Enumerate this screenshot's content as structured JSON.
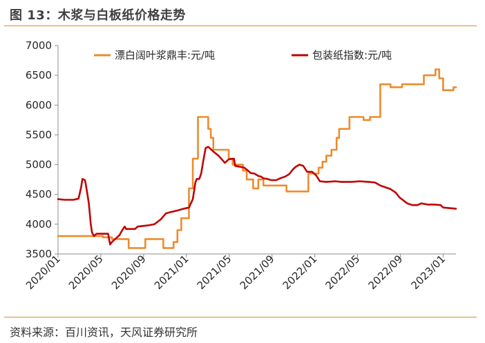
{
  "figure": {
    "title": "图 13：木浆与白板纸价格走势",
    "source": "资料来源：百川资讯，天风证券研究所"
  },
  "colors": {
    "pulp": "#ed8b2c",
    "board": "#c00000",
    "rule": "#d98b2b",
    "axis": "#8c8c8c"
  },
  "chart_data": {
    "type": "line",
    "title": "木浆与白板纸价格走势",
    "xlabel": "",
    "ylabel": "",
    "ylim": [
      3500,
      7000
    ],
    "yticks": [
      3500,
      4000,
      4500,
      5000,
      5500,
      6000,
      6500,
      7000
    ],
    "xlim": [
      2020.0,
      2023.1
    ],
    "xticks": [
      {
        "pos": 2020.0,
        "label": "2020/01"
      },
      {
        "pos": 2020.333,
        "label": "2020/05"
      },
      {
        "pos": 2020.667,
        "label": "2020/09"
      },
      {
        "pos": 2021.0,
        "label": "2021/01"
      },
      {
        "pos": 2021.333,
        "label": "2021/05"
      },
      {
        "pos": 2021.667,
        "label": "2021/09"
      },
      {
        "pos": 2022.0,
        "label": "2022/01"
      },
      {
        "pos": 2022.333,
        "label": "2022/05"
      },
      {
        "pos": 2022.667,
        "label": "2022/09"
      },
      {
        "pos": 2023.0,
        "label": "2023/01"
      }
    ],
    "legend": "top",
    "series": [
      {
        "name": "漂白阔叶浆鼎丰:元/吨",
        "color": "#ed8b2c",
        "step": true,
        "points": [
          [
            2020.0,
            3800
          ],
          [
            2020.35,
            3800
          ],
          [
            2020.35,
            3780
          ],
          [
            2020.42,
            3780
          ],
          [
            2020.42,
            3750
          ],
          [
            2020.55,
            3750
          ],
          [
            2020.55,
            3600
          ],
          [
            2020.68,
            3600
          ],
          [
            2020.68,
            3750
          ],
          [
            2020.82,
            3750
          ],
          [
            2020.82,
            3600
          ],
          [
            2020.9,
            3600
          ],
          [
            2020.9,
            3700
          ],
          [
            2020.93,
            3700
          ],
          [
            2020.93,
            3900
          ],
          [
            2020.96,
            3900
          ],
          [
            2020.96,
            4100
          ],
          [
            2021.02,
            4100
          ],
          [
            2021.02,
            4600
          ],
          [
            2021.05,
            4600
          ],
          [
            2021.05,
            5100
          ],
          [
            2021.09,
            5100
          ],
          [
            2021.09,
            5800
          ],
          [
            2021.17,
            5800
          ],
          [
            2021.17,
            5600
          ],
          [
            2021.19,
            5600
          ],
          [
            2021.19,
            5450
          ],
          [
            2021.21,
            5450
          ],
          [
            2021.21,
            5250
          ],
          [
            2021.33,
            5250
          ],
          [
            2021.33,
            5100
          ],
          [
            2021.36,
            5100
          ],
          [
            2021.36,
            5000
          ],
          [
            2021.44,
            5000
          ],
          [
            2021.44,
            4900
          ],
          [
            2021.47,
            4900
          ],
          [
            2021.47,
            4750
          ],
          [
            2021.52,
            4750
          ],
          [
            2021.52,
            4600
          ],
          [
            2021.56,
            4600
          ],
          [
            2021.56,
            4750
          ],
          [
            2021.6,
            4750
          ],
          [
            2021.6,
            4650
          ],
          [
            2021.78,
            4650
          ],
          [
            2021.78,
            4550
          ],
          [
            2021.95,
            4550
          ],
          [
            2021.95,
            4850
          ],
          [
            2022.03,
            4850
          ],
          [
            2022.03,
            4950
          ],
          [
            2022.06,
            4950
          ],
          [
            2022.06,
            5050
          ],
          [
            2022.09,
            5050
          ],
          [
            2022.09,
            5150
          ],
          [
            2022.13,
            5150
          ],
          [
            2022.13,
            5250
          ],
          [
            2022.17,
            5250
          ],
          [
            2022.17,
            5450
          ],
          [
            2022.19,
            5450
          ],
          [
            2022.19,
            5600
          ],
          [
            2022.27,
            5600
          ],
          [
            2022.27,
            5800
          ],
          [
            2022.38,
            5800
          ],
          [
            2022.38,
            5750
          ],
          [
            2022.43,
            5750
          ],
          [
            2022.43,
            5800
          ],
          [
            2022.51,
            5800
          ],
          [
            2022.51,
            6350
          ],
          [
            2022.59,
            6350
          ],
          [
            2022.59,
            6300
          ],
          [
            2022.68,
            6300
          ],
          [
            2022.68,
            6350
          ],
          [
            2022.85,
            6350
          ],
          [
            2022.85,
            6500
          ],
          [
            2022.94,
            6500
          ],
          [
            2022.94,
            6600
          ],
          [
            2022.97,
            6600
          ],
          [
            2022.97,
            6450
          ],
          [
            2023.0,
            6450
          ],
          [
            2023.0,
            6250
          ],
          [
            2023.08,
            6250
          ],
          [
            2023.08,
            6300
          ],
          [
            2023.1,
            6300
          ]
        ]
      },
      {
        "name": "包装纸指数:元/吨",
        "color": "#c00000",
        "step": false,
        "points": [
          [
            2020.0,
            4420
          ],
          [
            2020.05,
            4410
          ],
          [
            2020.12,
            4410
          ],
          [
            2020.16,
            4430
          ],
          [
            2020.18,
            4620
          ],
          [
            2020.19,
            4760
          ],
          [
            2020.21,
            4740
          ],
          [
            2020.22,
            4620
          ],
          [
            2020.24,
            4350
          ],
          [
            2020.255,
            4000
          ],
          [
            2020.265,
            3860
          ],
          [
            2020.28,
            3800
          ],
          [
            2020.3,
            3840
          ],
          [
            2020.34,
            3840
          ],
          [
            2020.39,
            3840
          ],
          [
            2020.405,
            3660
          ],
          [
            2020.42,
            3700
          ],
          [
            2020.45,
            3760
          ],
          [
            2020.48,
            3820
          ],
          [
            2020.5,
            3900
          ],
          [
            2020.52,
            3960
          ],
          [
            2020.53,
            3920
          ],
          [
            2020.6,
            3920
          ],
          [
            2020.62,
            3960
          ],
          [
            2020.7,
            3980
          ],
          [
            2020.75,
            4000
          ],
          [
            2020.8,
            4080
          ],
          [
            2020.84,
            4180
          ],
          [
            2020.87,
            4200
          ],
          [
            2020.93,
            4230
          ],
          [
            2020.98,
            4260
          ],
          [
            2021.02,
            4280
          ],
          [
            2021.05,
            4420
          ],
          [
            2021.07,
            4700
          ],
          [
            2021.08,
            4760
          ],
          [
            2021.1,
            4760
          ],
          [
            2021.115,
            4850
          ],
          [
            2021.13,
            5050
          ],
          [
            2021.15,
            5280
          ],
          [
            2021.17,
            5300
          ],
          [
            2021.21,
            5220
          ],
          [
            2021.25,
            5150
          ],
          [
            2021.28,
            5080
          ],
          [
            2021.3,
            5030
          ],
          [
            2021.33,
            5090
          ],
          [
            2021.37,
            5100
          ],
          [
            2021.38,
            4980
          ],
          [
            2021.45,
            4950
          ],
          [
            2021.48,
            4900
          ],
          [
            2021.5,
            4860
          ],
          [
            2021.53,
            4850
          ],
          [
            2021.56,
            4810
          ],
          [
            2021.58,
            4800
          ],
          [
            2021.6,
            4770
          ],
          [
            2021.63,
            4760
          ],
          [
            2021.66,
            4740
          ],
          [
            2021.7,
            4740
          ],
          [
            2021.73,
            4770
          ],
          [
            2021.77,
            4800
          ],
          [
            2021.8,
            4840
          ],
          [
            2021.83,
            4920
          ],
          [
            2021.85,
            4960
          ],
          [
            2021.88,
            5000
          ],
          [
            2021.91,
            4980
          ],
          [
            2021.94,
            4880
          ],
          [
            2021.98,
            4880
          ],
          [
            2022.01,
            4820
          ],
          [
            2022.04,
            4720
          ],
          [
            2022.09,
            4710
          ],
          [
            2022.16,
            4720
          ],
          [
            2022.21,
            4710
          ],
          [
            2022.28,
            4710
          ],
          [
            2022.35,
            4720
          ],
          [
            2022.42,
            4710
          ],
          [
            2022.47,
            4700
          ],
          [
            2022.51,
            4650
          ],
          [
            2022.55,
            4620
          ],
          [
            2022.59,
            4590
          ],
          [
            2022.63,
            4530
          ],
          [
            2022.66,
            4450
          ],
          [
            2022.69,
            4400
          ],
          [
            2022.72,
            4350
          ],
          [
            2022.76,
            4320
          ],
          [
            2022.8,
            4320
          ],
          [
            2022.83,
            4350
          ],
          [
            2022.88,
            4330
          ],
          [
            2022.93,
            4330
          ],
          [
            2022.98,
            4320
          ],
          [
            2023.0,
            4280
          ],
          [
            2023.05,
            4270
          ],
          [
            2023.1,
            4260
          ]
        ]
      }
    ]
  }
}
